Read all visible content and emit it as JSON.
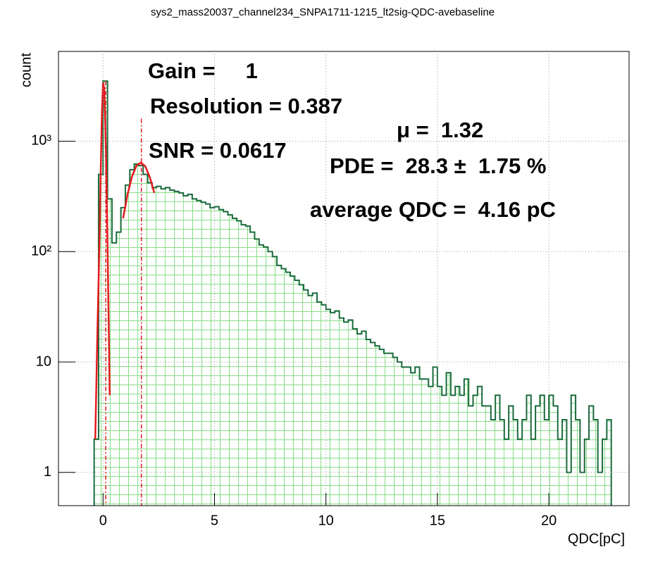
{
  "chart_data": {
    "type": "histogram",
    "title": "sys2_mass20037_channel234_SNPA1711-1215_lt2sig-QDC-avebaseline",
    "xlabel": "QDC[pC]",
    "ylabel": "count",
    "color": "#1a6b3c",
    "hatch_color": "#86dc86",
    "log_y": true,
    "grid": true,
    "xlim": [
      -2,
      23.6
    ],
    "ylim": [
      0.5,
      6500
    ],
    "xticks": [
      0,
      5,
      10,
      15,
      20
    ],
    "yticks": [
      1,
      10,
      {
        "value": 100,
        "label": "10²"
      },
      {
        "value": 1000,
        "label": "10³"
      }
    ],
    "bins": [
      -0.4,
      -0.2,
      0.0,
      0.2,
      0.4,
      0.6,
      0.8,
      1.0,
      1.2,
      1.4,
      1.6,
      1.8,
      2.0,
      2.2,
      2.4,
      2.6,
      2.8,
      3.0,
      3.2,
      3.4,
      3.6,
      3.8,
      4.0,
      4.2,
      4.4,
      4.6,
      4.8,
      5.0,
      5.2,
      5.4,
      5.6,
      5.8,
      6.0,
      6.2,
      6.4,
      6.6,
      6.8,
      7.0,
      7.2,
      7.4,
      7.6,
      7.8,
      8.0,
      8.2,
      8.4,
      8.6,
      8.8,
      9.0,
      9.2,
      9.4,
      9.6,
      9.8,
      10.0,
      10.2,
      10.4,
      10.6,
      10.8,
      11.0,
      11.2,
      11.4,
      11.6,
      11.8,
      12.0,
      12.2,
      12.4,
      12.6,
      12.8,
      13.0,
      13.2,
      13.4,
      13.6,
      13.8,
      14.0,
      14.2,
      14.4,
      14.6,
      14.8,
      15.0,
      15.2,
      15.4,
      15.6,
      15.8,
      16.0,
      16.2,
      16.4,
      16.6,
      16.8,
      17.0,
      17.2,
      17.4,
      17.6,
      17.8,
      18.0,
      18.2,
      18.4,
      18.6,
      18.8,
      19.0,
      19.2,
      19.4,
      19.6,
      19.8,
      20.0,
      20.2,
      20.4,
      20.6,
      20.8,
      21.0,
      21.2,
      21.4,
      21.6,
      21.8,
      22.0,
      22.2,
      22.4,
      22.6,
      22.8
    ],
    "counts": [
      2,
      500,
      3500,
      300,
      120,
      150,
      250,
      400,
      550,
      620,
      600,
      500,
      420,
      380,
      390,
      370,
      380,
      360,
      350,
      340,
      320,
      330,
      300,
      290,
      280,
      270,
      250,
      255,
      240,
      230,
      215,
      200,
      190,
      175,
      170,
      150,
      130,
      115,
      110,
      100,
      90,
      75,
      70,
      65,
      60,
      55,
      50,
      45,
      40,
      42,
      35,
      33,
      30,
      28,
      29,
      25,
      23,
      24,
      20,
      18,
      19,
      16,
      15,
      14,
      13,
      12,
      12,
      11,
      10,
      9,
      9,
      8,
      9,
      7,
      7,
      6,
      9,
      6,
      5,
      8,
      5,
      6,
      5,
      7,
      4,
      5,
      6,
      4,
      4,
      3,
      5,
      3,
      2,
      4,
      3,
      2,
      3,
      5,
      2,
      4,
      5,
      3,
      5,
      4,
      2,
      3,
      1,
      5,
      3,
      1,
      2,
      4,
      3,
      1,
      2,
      3
    ],
    "fits": [
      {
        "color": "#e41a1c",
        "x": [
          -0.35,
          -0.25,
          -0.15,
          -0.1,
          -0.05,
          0,
          0.05,
          0.1,
          0.15,
          0.2,
          0.25,
          0.3
        ],
        "values": [
          2,
          20,
          150,
          600,
          1800,
          3400,
          3000,
          1500,
          500,
          120,
          25,
          5
        ]
      },
      {
        "color": "#e41a1c",
        "x": [
          0.9,
          1.1,
          1.3,
          1.5,
          1.7,
          1.9,
          2.1,
          2.3
        ],
        "values": [
          200,
          330,
          480,
          600,
          640,
          590,
          470,
          340
        ]
      }
    ],
    "markers": {
      "color": "#e41a1c",
      "x": [
        0.12,
        1.72
      ]
    },
    "annotations": [
      "Gain =     1",
      "Resolution = 0.387",
      "SNR = 0.0617",
      "μ =  1.32",
      "PDE =  28.3 ±  1.75 %",
      "average QDC =  4.16 pC"
    ]
  }
}
